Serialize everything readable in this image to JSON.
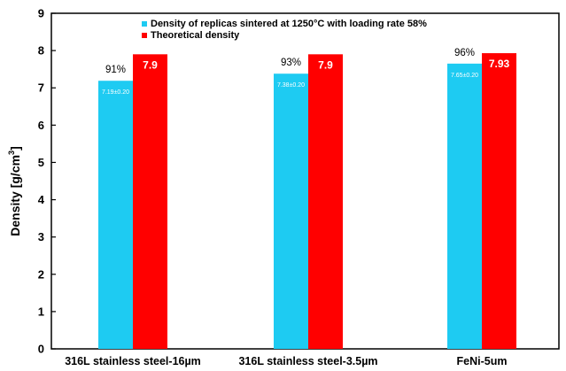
{
  "chart_data": {
    "type": "bar",
    "ylabel": "Density [g/cm",
    "ylabel_sup": "3",
    "ylabel_close": "]",
    "ylim": [
      0,
      9
    ],
    "yticks": [
      "0",
      "1",
      "2",
      "3",
      "4",
      "5",
      "6",
      "7",
      "8",
      "9"
    ],
    "categories": [
      "316L stainless steel-16µm",
      "316L stainless steel-3.5µm",
      "FeNi-5um"
    ],
    "series": [
      {
        "name": "Density of replicas sintered at 1250°C with loading rate 58%",
        "color": "#1ecbf2",
        "values": [
          7.19,
          7.38,
          7.65
        ],
        "value_labels": [
          "7.19±0.20",
          "7.38±0.20",
          "7.65±0.20"
        ],
        "top_labels": [
          "91%",
          "93%",
          "96%"
        ]
      },
      {
        "name": "Theoretical density",
        "color": "#ff0000",
        "values": [
          7.9,
          7.9,
          7.93
        ],
        "value_labels": [
          "7.9",
          "7.9",
          "7.93"
        ]
      }
    ],
    "legend_position": "top-center",
    "grid": false
  }
}
